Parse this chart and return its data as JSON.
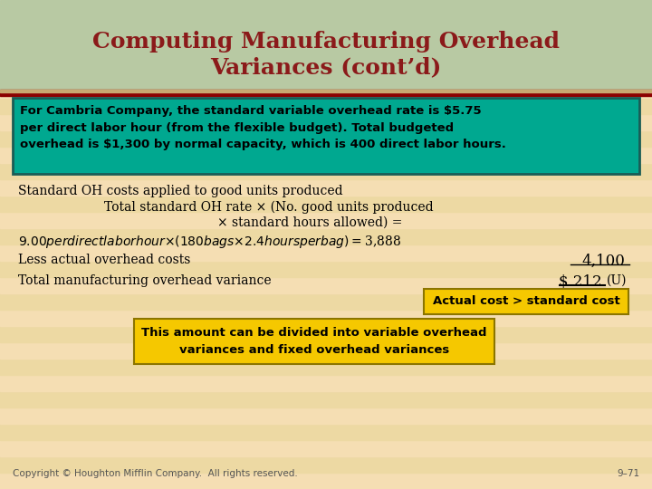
{
  "title_line1": "Computing Manufacturing Overhead",
  "title_line2": "Variances (cont’d)",
  "title_color": "#8B1A1A",
  "title_bg_color": "#B8C9A3",
  "body_bg_color": "#F5DEB3",
  "slide_border_color": "#8B0000",
  "teal_box_text": "For Cambria Company, the standard variable overhead rate is $5.75\nper direct labor hour (from the flexible budget). Total budgeted\noverhead is $1,300 by normal capacity, which is 400 direct labor hours.",
  "teal_box_bg": "#00A890",
  "teal_box_border": "#1A5C55",
  "line1": "Standard OH costs applied to good units produced",
  "line2": "Total standard OH rate × (No. good units produced",
  "line3": "× standard hours allowed) =",
  "line4": "$9.00 per direct labor hour × (180 bags × 2.4 hours per bag) = $3,888",
  "line5_label": "Less actual overhead costs",
  "line5_value": "4,100",
  "line6_label": "Total manufacturing overhead variance",
  "line6_value": "$ 212",
  "line6_suffix": "(U)",
  "yellow_box1_text": "Actual cost > standard cost",
  "yellow_box1_bg": "#F5C800",
  "yellow_box1_border": "#8B7500",
  "yellow_box2_text": "This amount can be divided into variable overhead\nvariances and fixed overhead variances",
  "yellow_box2_bg": "#F5C800",
  "yellow_box2_border": "#8B7500",
  "footer_left": "Copyright © Houghton Mifflin Company.  All rights reserved.",
  "footer_right": "9–71",
  "stripe_colors": [
    "#F5DEB3",
    "#EDD9A3"
  ]
}
